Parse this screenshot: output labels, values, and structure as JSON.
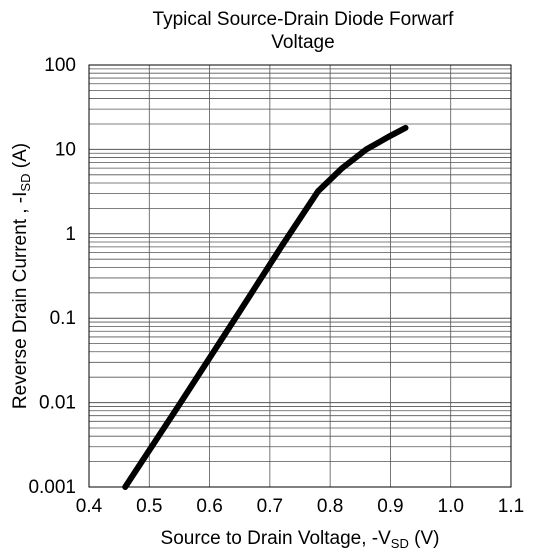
{
  "chart_data": {
    "type": "line",
    "title_line1": "Typical Source-Drain Diode Forwarf",
    "title_line2": "Voltage",
    "xlabel": {
      "prefix": "Source to Drain Voltage, -V",
      "sub": "SD",
      "suffix": " (V)"
    },
    "ylabel": {
      "prefix": "Reverse Drain Current , -I",
      "sub": "SD",
      "suffix": " (A)"
    },
    "xlim": [
      0.4,
      1.1
    ],
    "ylim": [
      0.001,
      100
    ],
    "yscale": "log",
    "grid": true,
    "x_ticks": [
      0.4,
      0.5,
      0.6,
      0.7,
      0.8,
      0.9,
      1.0,
      1.1
    ],
    "x_tick_labels": [
      "0.4",
      "0.5",
      "0.6",
      "0.7",
      "0.8",
      "0.9",
      "1.0",
      "1.1"
    ],
    "y_ticks": [
      0.001,
      0.01,
      0.1,
      1,
      10,
      100
    ],
    "y_tick_labels": [
      "0.001",
      "0.01",
      "0.1",
      "1",
      "10",
      "100"
    ],
    "series": [
      {
        "color": "#000000",
        "x": [
          0.46,
          0.55,
          0.65,
          0.72,
          0.78,
          0.82,
          0.86,
          0.9,
          0.925
        ],
        "y": [
          0.001,
          0.0095,
          0.12,
          0.72,
          3.2,
          6.0,
          10.0,
          14.5,
          18.0
        ]
      }
    ]
  }
}
